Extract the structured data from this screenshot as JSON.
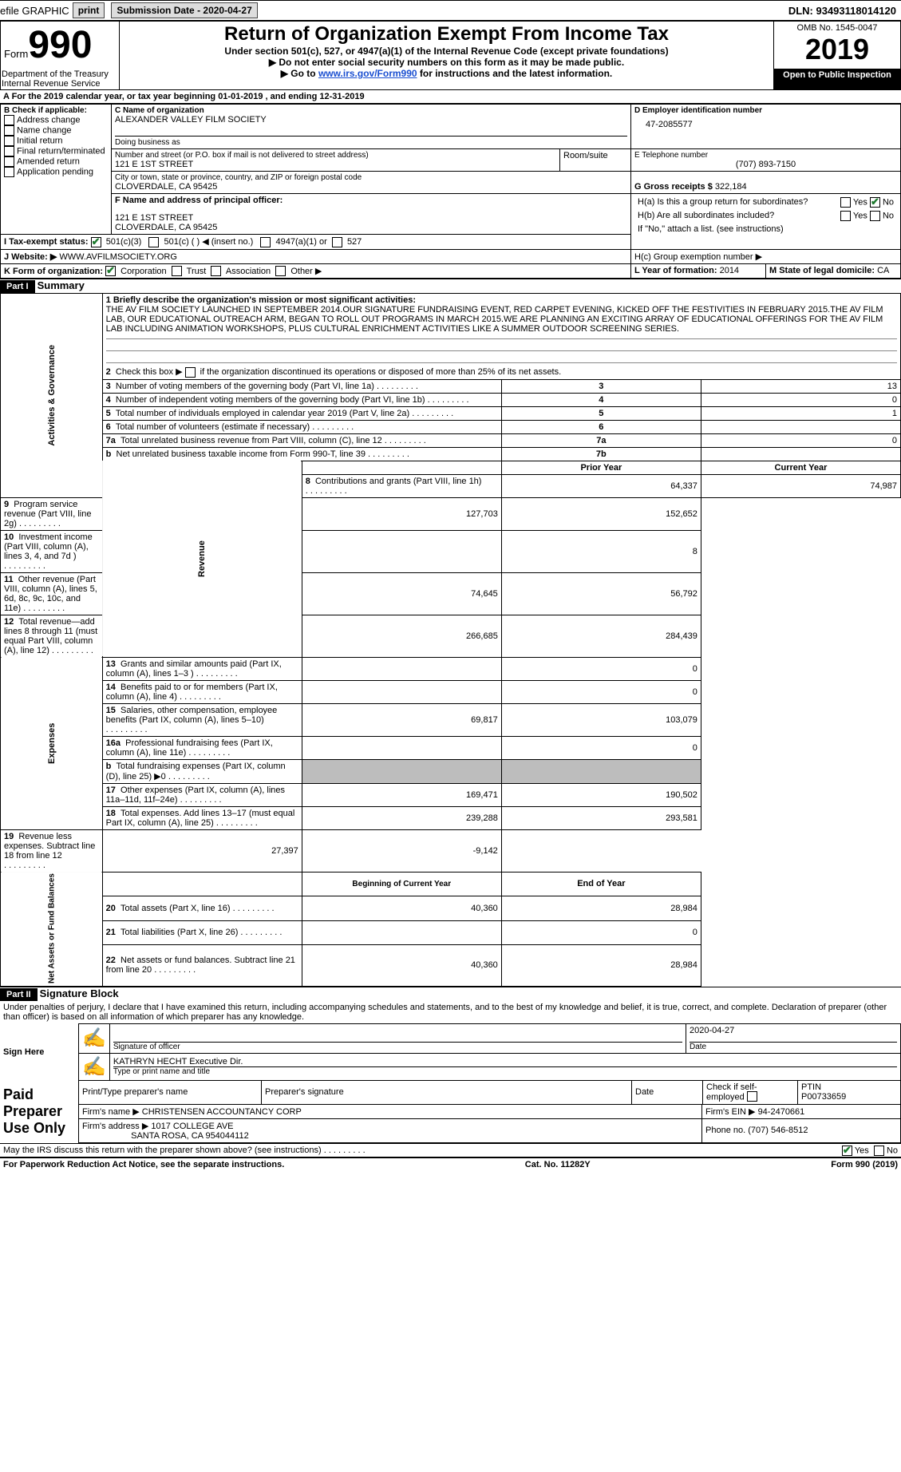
{
  "topbar": {
    "efile": "efile GRAPHIC",
    "print": "print",
    "submission_label": "Submission Date - 2020-04-27",
    "dln": "DLN: 93493118014120"
  },
  "header": {
    "form_word": "Form",
    "form_number": "990",
    "dept": "Department of the Treasury",
    "irs": "Internal Revenue Service",
    "title": "Return of Organization Exempt From Income Tax",
    "subtitle": "Under section 501(c), 527, or 4947(a)(1) of the Internal Revenue Code (except private foundations)",
    "note1": "Do not enter social security numbers on this form as it may be made public.",
    "note2_prefix": "Go to ",
    "note2_link": "www.irs.gov/Form990",
    "note2_suffix": " for instructions and the latest information.",
    "omb": "OMB No. 1545-0047",
    "year": "2019",
    "open": "Open to Public Inspection"
  },
  "A_line": "A For the 2019 calendar year, or tax year beginning 01-01-2019     , and ending 12-31-2019",
  "B": {
    "label": "B Check if applicable:",
    "items": [
      "Address change",
      "Name change",
      "Initial return",
      "Final return/terminated",
      "Amended return",
      "Application pending"
    ]
  },
  "C": {
    "name_label": "C Name of organization",
    "name": "ALEXANDER VALLEY FILM SOCIETY",
    "dba_label": "Doing business as",
    "street_label": "Number and street (or P.O. box if mail is not delivered to street address)",
    "street": "121 E 1ST STREET",
    "room_label": "Room/suite",
    "city_label": "City or town, state or province, country, and ZIP or foreign postal code",
    "city": "CLOVERDALE, CA  95425"
  },
  "D": {
    "label": "D Employer identification number",
    "value": "47-2085577"
  },
  "E": {
    "label": "E Telephone number",
    "value": "(707) 893-7150"
  },
  "G": {
    "label": "G Gross receipts $",
    "value": "322,184"
  },
  "F": {
    "label": "F  Name and address of principal officer:",
    "line1": "121 E 1ST STREET",
    "line2": "CLOVERDALE, CA  95425"
  },
  "H": {
    "a": "H(a)  Is this a group return for subordinates?",
    "b": "H(b)  Are all subordinates included?",
    "note": "If \"No,\" attach a list. (see instructions)",
    "c": "H(c)  Group exemption number ▶",
    "yes": "Yes",
    "no": "No"
  },
  "I": {
    "label": "I  Tax-exempt status:",
    "opt1": "501(c)(3)",
    "opt2": "501(c) (  ) ◀ (insert no.)",
    "opt3": "4947(a)(1) or",
    "opt4": "527"
  },
  "J": {
    "label": "J  Website: ▶",
    "value": "WWW.AVFILMSOCIETY.ORG"
  },
  "K": {
    "label": "K Form of organization:",
    "opts": [
      "Corporation",
      "Trust",
      "Association",
      "Other ▶"
    ]
  },
  "L": {
    "label": "L Year of formation:",
    "value": "2014"
  },
  "M": {
    "label": "M State of legal domicile:",
    "value": "CA"
  },
  "part1": {
    "header": "Part I",
    "title": "Summary",
    "line1_label": "1  Briefly describe the organization's mission or most significant activities:",
    "mission": "THE AV FILM SOCIETY LAUNCHED IN SEPTEMBER 2014.OUR SIGNATURE FUNDRAISING EVENT, RED CARPET EVENING, KICKED OFF THE FESTIVITIES IN FEBRUARY 2015.THE AV FILM LAB, OUR EDUCATIONAL OUTREACH ARM, BEGAN TO ROLL OUT PROGRAMS IN MARCH 2015.WE ARE PLANNING AN EXCITING ARRAY OF EDUCATIONAL OFFERINGS FOR THE AV FILM LAB INCLUDING ANIMATION WORKSHOPS, PLUS CULTURAL ENRICHMENT ACTIVITIES LIKE A SUMMER OUTDOOR SCREENING SERIES.",
    "line2": "2   Check this box ▶         if the organization discontinued its operations or disposed of more than 25% of its net assets."
  },
  "side_labels": {
    "gov": "Activities & Governance",
    "rev": "Revenue",
    "exp": "Expenses",
    "net": "Net Assets or Fund Balances"
  },
  "gov_rows": [
    {
      "n": "3",
      "label": "Number of voting members of the governing body (Part VI, line 1a)",
      "box": "3",
      "val": "13"
    },
    {
      "n": "4",
      "label": "Number of independent voting members of the governing body (Part VI, line 1b)",
      "box": "4",
      "val": "0"
    },
    {
      "n": "5",
      "label": "Total number of individuals employed in calendar year 2019 (Part V, line 2a)",
      "box": "5",
      "val": "1"
    },
    {
      "n": "6",
      "label": "Total number of volunteers (estimate if necessary)",
      "box": "6",
      "val": ""
    },
    {
      "n": "7a",
      "label": "Total unrelated business revenue from Part VIII, column (C), line 12",
      "box": "7a",
      "val": "0"
    },
    {
      "n": "b",
      "label": "Net unrelated business taxable income from Form 990-T, line 39",
      "box": "7b",
      "val": ""
    }
  ],
  "two_col_header": {
    "prior": "Prior Year",
    "current": "Current Year"
  },
  "rev_rows": [
    {
      "n": "8",
      "label": "Contributions and grants (Part VIII, line 1h)",
      "p": "64,337",
      "c": "74,987"
    },
    {
      "n": "9",
      "label": "Program service revenue (Part VIII, line 2g)",
      "p": "127,703",
      "c": "152,652"
    },
    {
      "n": "10",
      "label": "Investment income (Part VIII, column (A), lines 3, 4, and 7d )",
      "p": "",
      "c": "8"
    },
    {
      "n": "11",
      "label": "Other revenue (Part VIII, column (A), lines 5, 6d, 8c, 9c, 10c, and 11e)",
      "p": "74,645",
      "c": "56,792"
    },
    {
      "n": "12",
      "label": "Total revenue—add lines 8 through 11 (must equal Part VIII, column (A), line 12)",
      "p": "266,685",
      "c": "284,439"
    }
  ],
  "exp_rows": [
    {
      "n": "13",
      "label": "Grants and similar amounts paid (Part IX, column (A), lines 1–3 )",
      "p": "",
      "c": "0"
    },
    {
      "n": "14",
      "label": "Benefits paid to or for members (Part IX, column (A), line 4)",
      "p": "",
      "c": "0"
    },
    {
      "n": "15",
      "label": "Salaries, other compensation, employee benefits (Part IX, column (A), lines 5–10)",
      "p": "69,817",
      "c": "103,079"
    },
    {
      "n": "16a",
      "label": "Professional fundraising fees (Part IX, column (A), line 11e)",
      "p": "",
      "c": "0"
    },
    {
      "n": "b",
      "label": "Total fundraising expenses (Part IX, column (D), line 25) ▶0",
      "p": "GREY",
      "c": "GREY"
    },
    {
      "n": "17",
      "label": "Other expenses (Part IX, column (A), lines 11a–11d, 11f–24e)",
      "p": "169,471",
      "c": "190,502"
    },
    {
      "n": "18",
      "label": "Total expenses. Add lines 13–17 (must equal Part IX, column (A), line 25)",
      "p": "239,288",
      "c": "293,581"
    },
    {
      "n": "19",
      "label": "Revenue less expenses. Subtract line 18 from line 12",
      "p": "27,397",
      "c": "-9,142"
    }
  ],
  "net_header": {
    "begin": "Beginning of Current Year",
    "end": "End of Year"
  },
  "net_rows": [
    {
      "n": "20",
      "label": "Total assets (Part X, line 16)",
      "p": "40,360",
      "c": "28,984"
    },
    {
      "n": "21",
      "label": "Total liabilities (Part X, line 26)",
      "p": "",
      "c": "0"
    },
    {
      "n": "22",
      "label": "Net assets or fund balances. Subtract line 21 from line 20",
      "p": "40,360",
      "c": "28,984"
    }
  ],
  "part2": {
    "header": "Part II",
    "title": "Signature Block",
    "declaration": "Under penalties of perjury, I declare that I have examined this return, including accompanying schedules and statements, and to the best of my knowledge and belief, it is true, correct, and complete. Declaration of preparer (other than officer) is based on all information of which preparer has any knowledge."
  },
  "sign": {
    "here": "Sign Here",
    "sig_label": "Signature of officer",
    "date_label": "Date",
    "date": "2020-04-27",
    "name": "KATHRYN HECHT Executive Dir.",
    "name_label": "Type or print name and title"
  },
  "preparer": {
    "left": "Paid Preparer Use Only",
    "print_label": "Print/Type preparer's name",
    "sig_label": "Preparer's signature",
    "date_label": "Date",
    "check_label": "Check          if self-employed",
    "ptin_label": "PTIN",
    "ptin": "P00733659",
    "firm_name_label": "Firm's name      ▶",
    "firm_name": "CHRISTENSEN ACCOUNTANCY CORP",
    "firm_ein_label": "Firm's EIN ▶",
    "firm_ein": "94-2470661",
    "firm_addr_label": "Firm's address ▶",
    "firm_addr1": "1017 COLLEGE AVE",
    "firm_addr2": "SANTA ROSA, CA  954044112",
    "phone_label": "Phone no.",
    "phone": "(707) 546-8512"
  },
  "discuss": {
    "label": "May the IRS discuss this return with the preparer shown above? (see instructions)",
    "yes": "Yes",
    "no": "No"
  },
  "footer": {
    "left": "For Paperwork Reduction Act Notice, see the separate instructions.",
    "mid": "Cat. No. 11282Y",
    "right": "Form 990 (2019)"
  },
  "colors": {
    "link": "#1a4fd1",
    "check": "#1d7a2e",
    "grey": "#bdbdbd"
  }
}
